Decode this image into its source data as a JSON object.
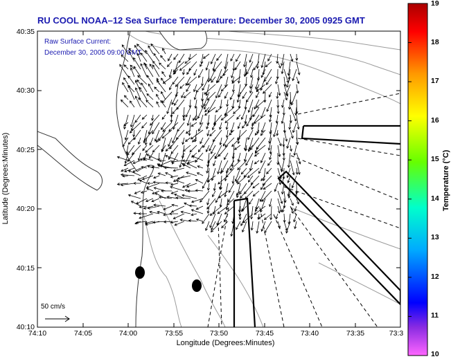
{
  "chart_data": {
    "type": "map-vector",
    "title": "RU COOL   NOAA–12  Sea Surface Temperature:  December 30, 2005 0925 GMT",
    "subtitle_line1": "Raw Surface Current:",
    "subtitle_line2": "December 30, 2005 09:00 GMT",
    "xlabel": "Longitude (Degrees:Minutes)",
    "ylabel": "Latitude (Degrees:Minutes)",
    "x_ticks": [
      "74:10",
      "74:05",
      "74:00",
      "73:55",
      "73:50",
      "73:45",
      "73:40",
      "73:35",
      "73:3"
    ],
    "y_ticks": [
      "40:35",
      "40:30",
      "40:25",
      "40:20",
      "40:15",
      "40:10"
    ],
    "colorbar_label": "Temperature (°C)",
    "colorbar_ticks": [
      "19",
      "18",
      "17",
      "16",
      "15",
      "14",
      "13",
      "12",
      "11",
      "10"
    ],
    "colorbar_range": [
      10,
      19
    ],
    "scale_label": "50 cm/s",
    "colors": {
      "title": "#1a1ab0",
      "land": "#ffffff",
      "contour": "#888888",
      "vector": "#000000"
    }
  }
}
